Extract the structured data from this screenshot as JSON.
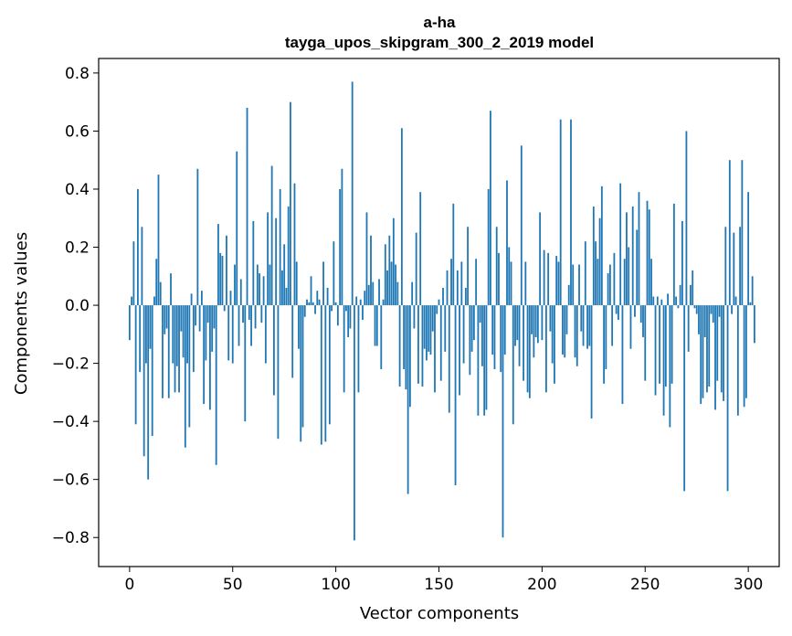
{
  "chart_data": {
    "type": "bar",
    "title": "a-ha",
    "subtitle": "tayga_upos_skipgram_300_2_2019 model",
    "xlabel": "Vector components",
    "ylabel": "Components values",
    "xlim": [
      -15,
      315
    ],
    "ylim": [
      -0.9,
      0.85
    ],
    "xticks": [
      0,
      50,
      100,
      150,
      200,
      250,
      300
    ],
    "yticks": [
      -0.8,
      -0.6,
      -0.4,
      -0.2,
      0.0,
      0.2,
      0.4,
      0.6,
      0.8
    ],
    "xtick_labels": [
      "0",
      "50",
      "100",
      "150",
      "200",
      "250",
      "300"
    ],
    "ytick_labels": [
      "−0.8",
      "−0.6",
      "−0.4",
      "−0.2",
      "0.0",
      "0.2",
      "0.4",
      "0.6",
      "0.8"
    ],
    "bar_color": "#1f77b4",
    "grid": false,
    "values": [
      -0.12,
      0.03,
      0.22,
      -0.41,
      0.4,
      -0.23,
      0.27,
      -0.52,
      -0.2,
      -0.6,
      -0.15,
      -0.45,
      0.03,
      0.16,
      0.45,
      0.08,
      -0.32,
      -0.1,
      -0.08,
      -0.32,
      0.11,
      -0.2,
      -0.3,
      -0.21,
      -0.3,
      -0.09,
      -0.18,
      -0.49,
      -0.2,
      -0.42,
      0.04,
      -0.23,
      -0.07,
      0.47,
      -0.09,
      0.05,
      -0.34,
      -0.19,
      -0.06,
      -0.36,
      -0.16,
      -0.08,
      -0.55,
      0.28,
      0.18,
      0.17,
      -0.02,
      0.24,
      -0.19,
      0.05,
      -0.2,
      0.14,
      0.53,
      -0.14,
      0.09,
      -0.06,
      -0.4,
      0.68,
      -0.05,
      -0.14,
      0.29,
      -0.08,
      0.14,
      0.11,
      -0.06,
      0.1,
      -0.2,
      0.32,
      0.14,
      0.48,
      -0.31,
      0.3,
      -0.46,
      0.4,
      0.12,
      0.21,
      0.06,
      0.34,
      0.7,
      -0.25,
      0.42,
      0.15,
      -0.15,
      -0.47,
      -0.42,
      -0.04,
      0.02,
      0.01,
      0.1,
      0.01,
      -0.03,
      0.05,
      0.02,
      -0.48,
      0.15,
      -0.47,
      0.06,
      -0.41,
      -0.02,
      0.22,
      0.01,
      -0.07,
      0.4,
      0.47,
      -0.3,
      -0.02,
      -0.11,
      -0.08,
      0.77,
      -0.81,
      0.03,
      -0.3,
      0.02,
      -0.05,
      0.05,
      0.32,
      0.07,
      0.24,
      0.08,
      -0.14,
      -0.14,
      0.09,
      -0.22,
      0.02,
      0.21,
      0.12,
      0.24,
      0.15,
      0.3,
      0.14,
      0.08,
      -0.28,
      0.61,
      -0.22,
      -0.29,
      -0.65,
      -0.35,
      0.08,
      -0.08,
      0.25,
      -0.27,
      0.39,
      -0.28,
      -0.15,
      -0.19,
      -0.16,
      -0.17,
      -0.09,
      -0.3,
      -0.03,
      0.02,
      -0.26,
      0.06,
      -0.16,
      0.12,
      -0.37,
      0.16,
      0.35,
      -0.62,
      0.12,
      -0.31,
      0.15,
      -0.2,
      0.06,
      0.27,
      -0.24,
      -0.16,
      -0.12,
      0.16,
      -0.38,
      -0.06,
      -0.21,
      -0.38,
      -0.36,
      0.4,
      0.67,
      -0.17,
      -0.22,
      0.27,
      0.18,
      -0.23,
      -0.8,
      -0.17,
      0.43,
      0.2,
      0.15,
      -0.41,
      -0.14,
      -0.12,
      -0.21,
      0.55,
      -0.26,
      0.15,
      -0.3,
      -0.32,
      -0.1,
      -0.18,
      -0.11,
      -0.13,
      0.32,
      -0.12,
      0.19,
      -0.3,
      0.18,
      -0.09,
      -0.2,
      -0.27,
      0.17,
      0.15,
      0.64,
      -0.17,
      -0.18,
      -0.1,
      0.07,
      0.64,
      0.14,
      -0.18,
      -0.21,
      0.14,
      -0.09,
      -0.14,
      0.22,
      -0.15,
      -0.14,
      -0.39,
      0.34,
      0.22,
      0.16,
      0.3,
      0.41,
      -0.27,
      -0.22,
      0.11,
      0.14,
      -0.14,
      0.18,
      -0.03,
      -0.05,
      0.42,
      -0.34,
      0.16,
      0.32,
      0.2,
      -0.15,
      0.34,
      -0.04,
      0.26,
      0.39,
      -0.06,
      -0.11,
      -0.26,
      0.36,
      0.33,
      0.16,
      0.03,
      -0.31,
      0.03,
      -0.27,
      0.02,
      -0.38,
      -0.28,
      0.04,
      -0.42,
      -0.27,
      0.35,
      0.03,
      -0.01,
      0.07,
      0.29,
      -0.64,
      0.6,
      -0.16,
      0.07,
      0.12,
      -0.01,
      -0.03,
      -0.1,
      -0.34,
      -0.32,
      -0.11,
      -0.3,
      -0.28,
      -0.03,
      -0.06,
      -0.36,
      -0.26,
      -0.04,
      -0.3,
      -0.33,
      0.27,
      -0.64,
      0.5,
      -0.03,
      0.25,
      0.03,
      -0.38,
      0.27,
      0.5,
      -0.35,
      -0.32,
      0.39,
      0.01,
      0.1,
      -0.13
    ]
  }
}
